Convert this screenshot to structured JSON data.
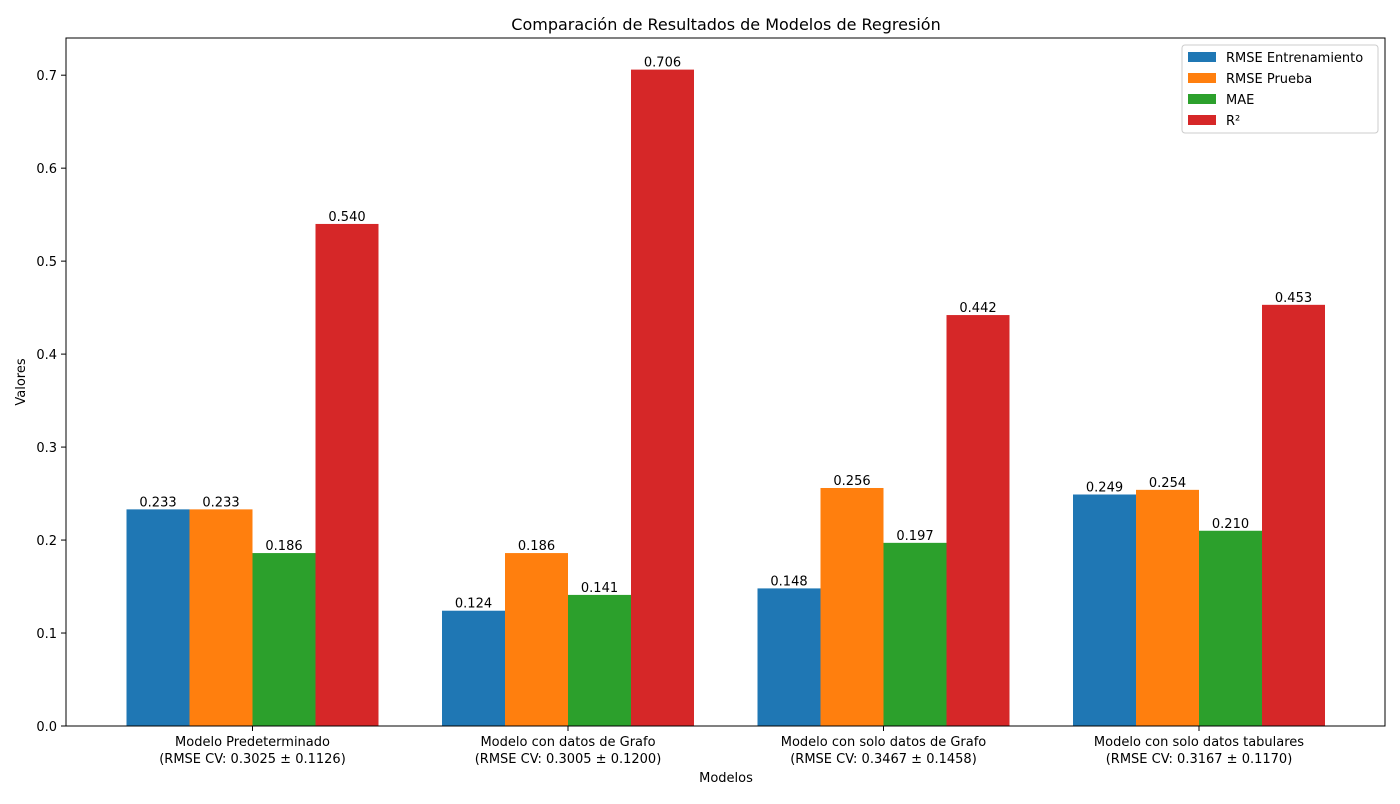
{
  "chart_data": {
    "type": "bar",
    "title": "Comparación de Resultados de Modelos de Regresión",
    "xlabel": "Modelos",
    "ylabel": "Valores",
    "ylim": [
      0,
      0.74
    ],
    "yticks": [
      "0.0",
      "0.1",
      "0.2",
      "0.3",
      "0.4",
      "0.5",
      "0.6",
      "0.7"
    ],
    "grid": false,
    "legend_position": "top-right",
    "categories": [
      [
        "Modelo Predeterminado",
        "(RMSE CV: 0.3025 ± 0.1126)"
      ],
      [
        "Modelo con datos de Grafo",
        "(RMSE CV: 0.3005 ± 0.1200)"
      ],
      [
        "Modelo con solo datos de Grafo",
        "(RMSE CV: 0.3467 ± 0.1458)"
      ],
      [
        "Modelo con solo datos tabulares",
        "(RMSE CV: 0.3167 ± 0.1170)"
      ]
    ],
    "series": [
      {
        "name": "RMSE Entrenamiento",
        "color": "#1f77b4",
        "values": [
          0.233,
          0.124,
          0.148,
          0.249
        ],
        "labels": [
          "0.233",
          "0.124",
          "0.148",
          "0.249"
        ]
      },
      {
        "name": "RMSE Prueba",
        "color": "#ff7f0e",
        "values": [
          0.233,
          0.186,
          0.256,
          0.254
        ],
        "labels": [
          "0.233",
          "0.186",
          "0.256",
          "0.254"
        ]
      },
      {
        "name": "MAE",
        "color": "#2ca02c",
        "values": [
          0.186,
          0.141,
          0.197,
          0.21
        ],
        "labels": [
          "0.186",
          "0.141",
          "0.197",
          "0.210"
        ]
      },
      {
        "name": "R²",
        "color": "#d62728",
        "values": [
          0.54,
          0.706,
          0.442,
          0.453
        ],
        "labels": [
          "0.540",
          "0.706",
          "0.442",
          "0.453"
        ]
      }
    ]
  }
}
